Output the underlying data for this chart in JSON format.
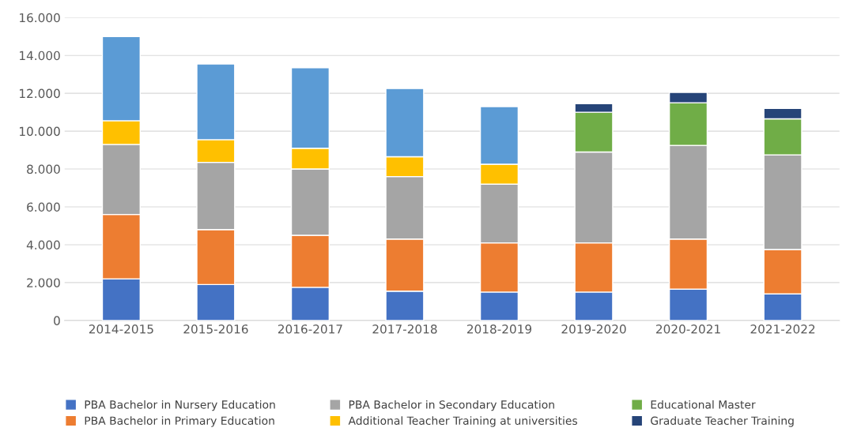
{
  "chart_data": {
    "type": "bar",
    "stacked": true,
    "categories": [
      "2014-2015",
      "2015-2016",
      "2016-2017",
      "2017-2018",
      "2018-2019",
      "2019-2020",
      "2020-2021",
      "2021-2022"
    ],
    "series": [
      {
        "name": "PBA Bachelor in Nursery Education",
        "color": "#4472c4",
        "values": [
          2200,
          1900,
          1750,
          1550,
          1500,
          1500,
          1650,
          1400
        ]
      },
      {
        "name": "PBA Bachelor in Primary Education",
        "color": "#ed7d31",
        "values": [
          3400,
          2900,
          2750,
          2750,
          2600,
          2600,
          2650,
          2350
        ]
      },
      {
        "name": "PBA Bachelor in Secondary Education",
        "color": "#a5a5a5",
        "values": [
          3700,
          3550,
          3500,
          3300,
          3100,
          4800,
          4950,
          5000
        ]
      },
      {
        "name": "Additional Teacher Training at universities",
        "color": "#ffc000",
        "values": [
          1250,
          1200,
          1100,
          1050,
          1050,
          null,
          null,
          null
        ]
      },
      {
        "name": "Educational Master",
        "color": "#70ad47",
        "values": [
          null,
          null,
          null,
          null,
          null,
          2100,
          2250,
          1900
        ]
      },
      {
        "name": "Graduate Teacher Training",
        "color": "#264478",
        "values": [
          null,
          null,
          null,
          null,
          null,
          450,
          550,
          550
        ]
      },
      {
        "color": "#5b9bd5",
        "values": [
          4450,
          4000,
          4250,
          3600,
          3050,
          null,
          null,
          null
        ]
      }
    ],
    "ylim": [
      0,
      16000
    ],
    "yticks": [
      {
        "value": 0,
        "label": "0"
      },
      {
        "value": 2000,
        "label": "2.000"
      },
      {
        "value": 4000,
        "label": "4.000"
      },
      {
        "value": 6000,
        "label": "6.000"
      },
      {
        "value": 8000,
        "label": "8.000"
      },
      {
        "value": 10000,
        "label": "10.000"
      },
      {
        "value": 12000,
        "label": "12.000"
      },
      {
        "value": 14000,
        "label": "14.000"
      },
      {
        "value": 16000,
        "label": "16.000"
      }
    ],
    "grid": "y",
    "legend": "bottom"
  }
}
